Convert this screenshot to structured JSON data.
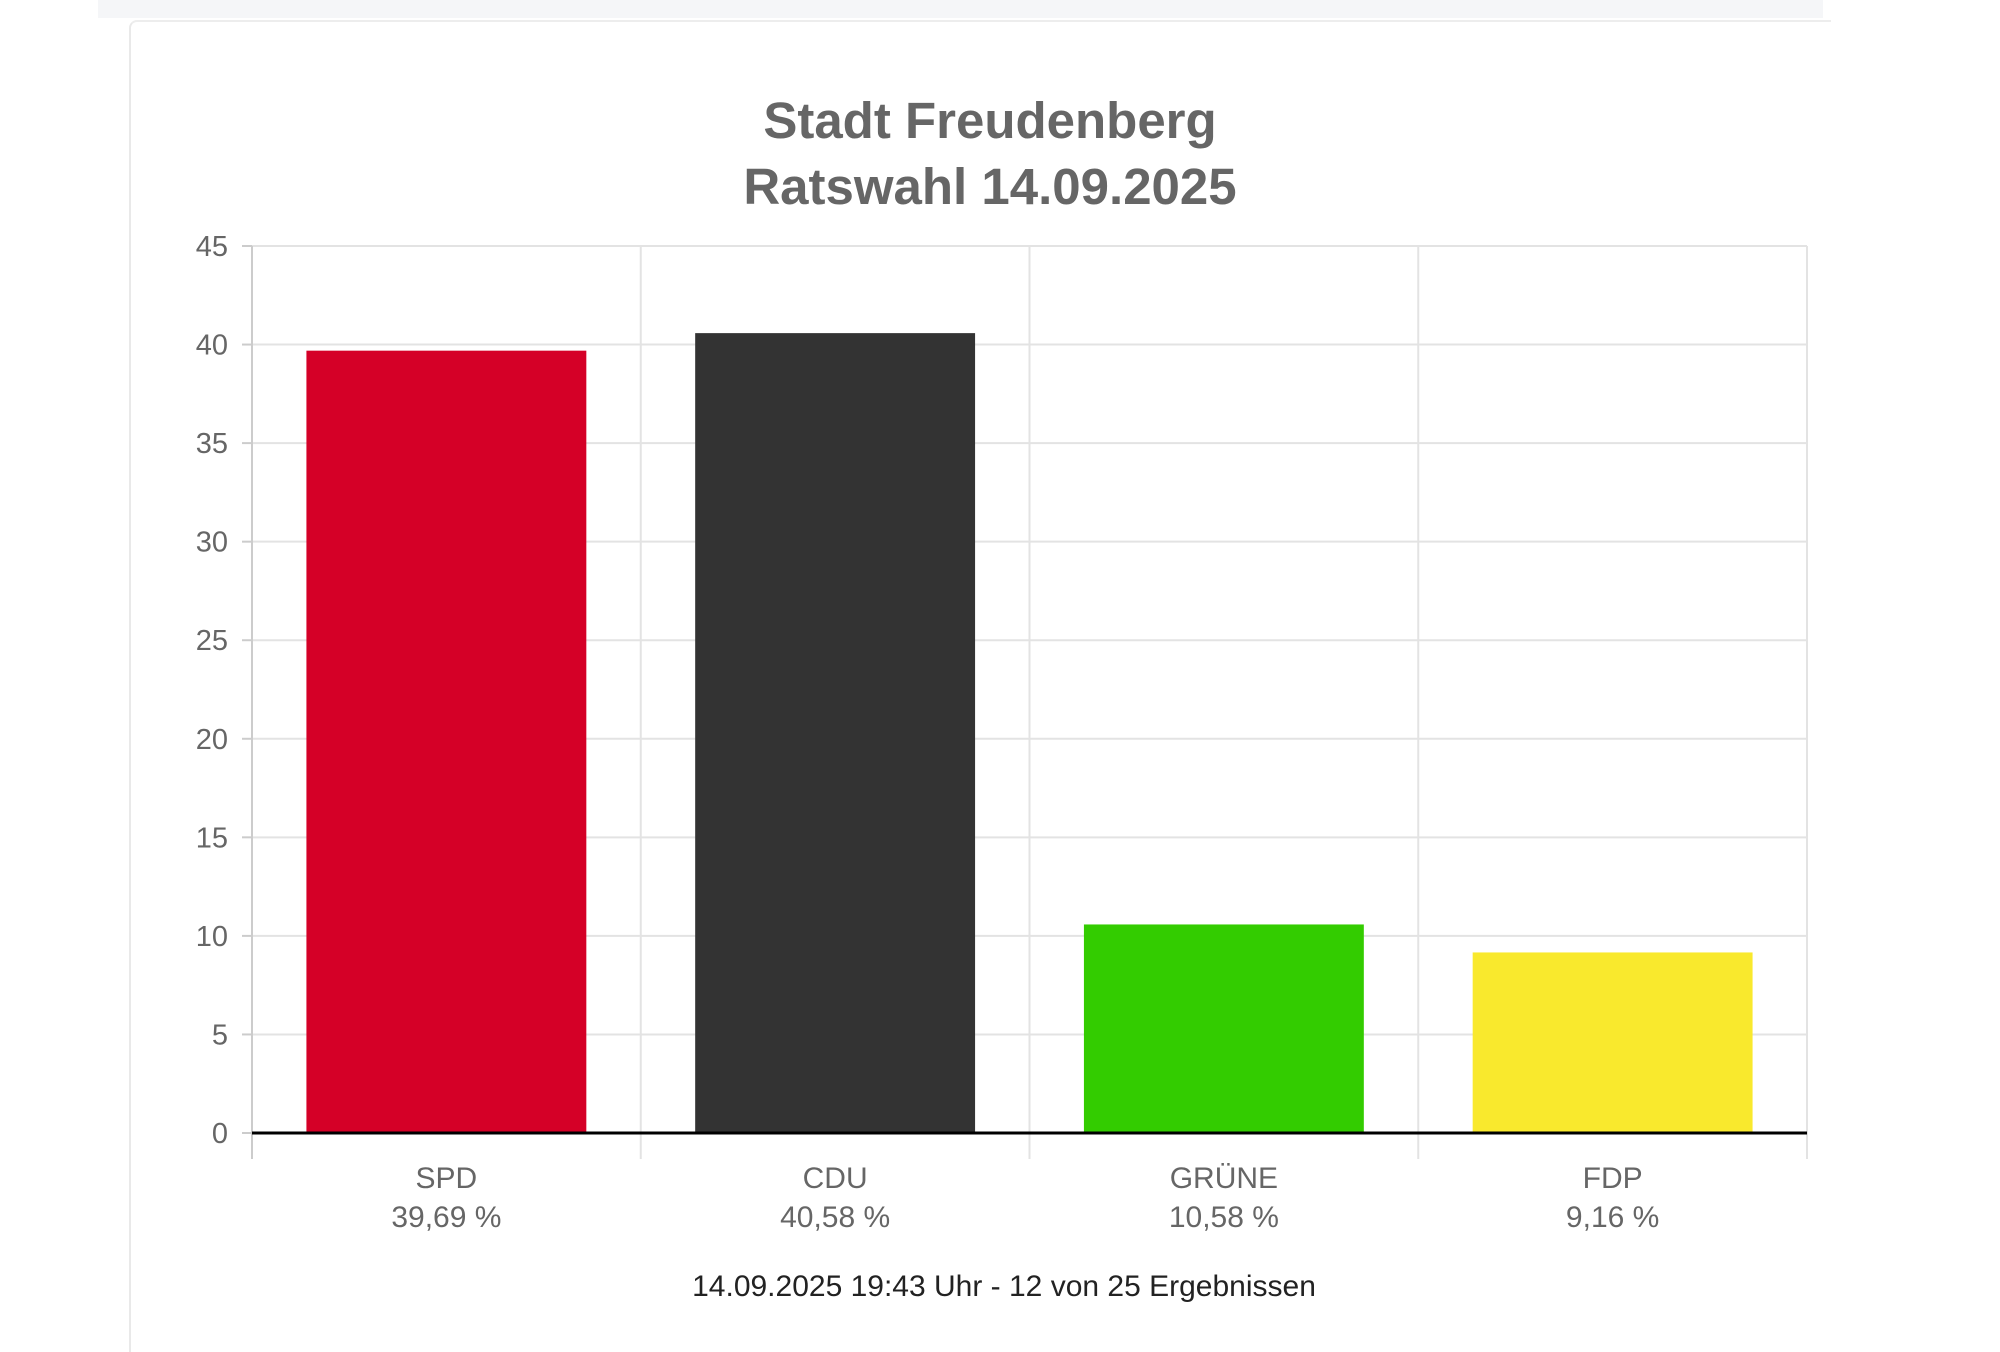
{
  "chart_data": {
    "type": "bar",
    "title_lines": [
      "Stadt Freudenberg",
      "Ratswahl 14.09.2025"
    ],
    "categories": [
      "SPD",
      "CDU",
      "GRÜNE",
      "FDP"
    ],
    "values": [
      39.69,
      40.58,
      10.58,
      9.16
    ],
    "value_labels": [
      "39,69 %",
      "40,58 %",
      "10,58 %",
      "9,16 %"
    ],
    "colors": [
      "#d50027",
      "#333333",
      "#33cc00",
      "#f9e92d"
    ],
    "ylim": [
      0,
      45
    ],
    "yticks": [
      0,
      5,
      10,
      15,
      20,
      25,
      30,
      35,
      40,
      45
    ],
    "xlabel": "",
    "ylabel": "",
    "grid": true,
    "legend": "none"
  },
  "footer": "14.09.2025 19:43 Uhr - 12 von 25 Ergebnissen"
}
